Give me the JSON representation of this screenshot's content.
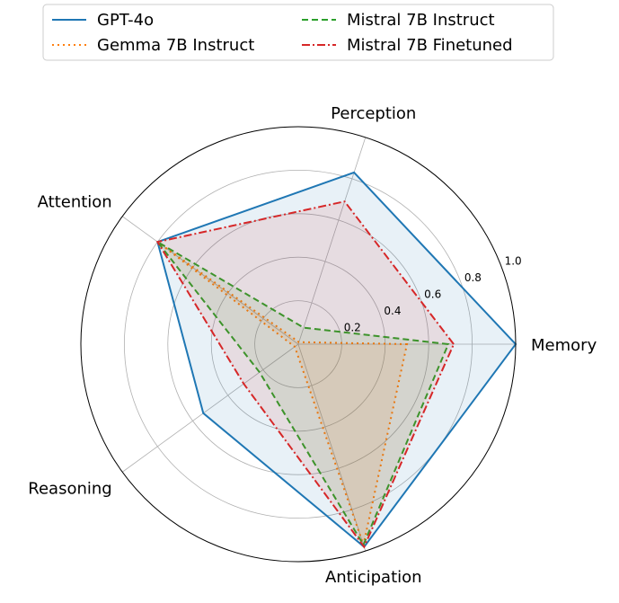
{
  "chart_data": {
    "type": "radar",
    "axes": [
      "Memory",
      "Perception",
      "Attention",
      "Reasoning",
      "Anticipation"
    ],
    "rlim": [
      0,
      1.0
    ],
    "rticks": [
      "0.2",
      "0.4",
      "0.6",
      "0.8",
      "1.0"
    ],
    "rtick_values": [
      0.2,
      0.4,
      0.6,
      0.8,
      1.0
    ],
    "grid": true,
    "legend_placement": "top",
    "series": [
      {
        "name": "GPT-4o",
        "color": "#1f77b4",
        "dash": "solid",
        "values": [
          1.0,
          0.83,
          0.8,
          0.54,
          0.98
        ]
      },
      {
        "name": "Gemma 7B Instruct",
        "color": "#ff7f0e",
        "dash": "dotted",
        "values": [
          0.5,
          0.01,
          0.8,
          0.02,
          0.97
        ]
      },
      {
        "name": "Mistral 7B Instruct",
        "color": "#2ca02c",
        "dash": "dashed",
        "values": [
          0.69,
          0.08,
          0.8,
          0.22,
          0.97
        ]
      },
      {
        "name": "Mistral 7B Finetuned",
        "color": "#d62728",
        "dash": "dashdot",
        "values": [
          0.715,
          0.69,
          0.8,
          0.31,
          0.98
        ]
      }
    ]
  }
}
